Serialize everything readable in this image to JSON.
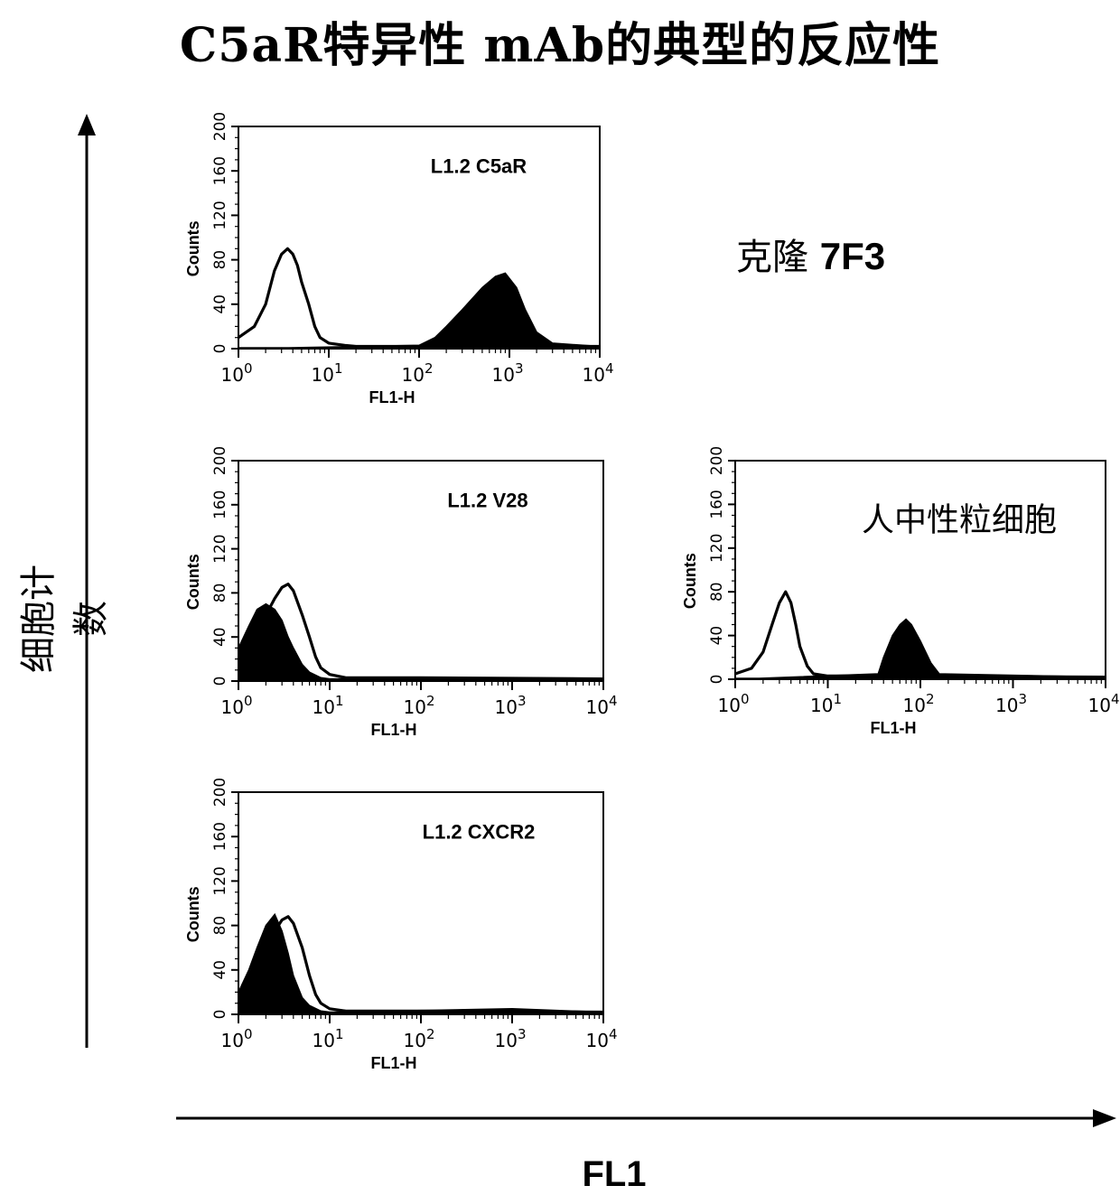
{
  "title": "C5aR特异性 mAb的典型的反应性",
  "clone_label": "克隆",
  "clone_id": "7F3",
  "overall_y_label": "细胞计数",
  "overall_x_label": "FL1",
  "colors": {
    "ink": "#000000",
    "background": "#ffffff"
  },
  "chart_data": [
    {
      "type": "area",
      "panel_label": "L1.2 C5aR",
      "xlabel": "FL1-H",
      "ylabel": "Counts",
      "x_scale": "log",
      "xlim": [
        1,
        10000
      ],
      "ylim": [
        0,
        200
      ],
      "x_ticks": [
        "10^0",
        "10^1",
        "10^2",
        "10^3",
        "10^4"
      ],
      "y_ticks": [
        0,
        40,
        80,
        120,
        160,
        200
      ],
      "series": [
        {
          "style": "open-outline",
          "x": [
            1,
            1.5,
            2,
            2.5,
            3,
            3.5,
            4,
            4.5,
            5,
            6,
            7,
            8,
            10,
            15,
            20,
            50,
            100,
            10000
          ],
          "y": [
            10,
            20,
            40,
            70,
            85,
            90,
            85,
            75,
            60,
            40,
            20,
            10,
            5,
            3,
            2,
            2,
            2,
            2
          ]
        },
        {
          "style": "filled",
          "x": [
            1,
            100,
            150,
            200,
            300,
            500,
            700,
            900,
            1200,
            1500,
            2000,
            3000,
            10000
          ],
          "y": [
            0,
            3,
            10,
            20,
            35,
            55,
            65,
            68,
            55,
            35,
            15,
            5,
            2
          ]
        }
      ]
    },
    {
      "type": "area",
      "panel_label": "L1.2 V28",
      "xlabel": "FL1-H",
      "ylabel": "Counts",
      "x_scale": "log",
      "xlim": [
        1,
        10000
      ],
      "ylim": [
        0,
        200
      ],
      "x_ticks": [
        "10^0",
        "10^1",
        "10^2",
        "10^3",
        "10^4"
      ],
      "y_ticks": [
        0,
        40,
        80,
        120,
        160,
        200
      ],
      "series": [
        {
          "style": "open-outline",
          "x": [
            1,
            1.5,
            2,
            2.5,
            3,
            3.5,
            4,
            5,
            6,
            7,
            8,
            10,
            15,
            20,
            100,
            10000
          ],
          "y": [
            20,
            40,
            60,
            75,
            85,
            88,
            82,
            60,
            40,
            22,
            12,
            6,
            3,
            3,
            3,
            2
          ]
        },
        {
          "style": "filled",
          "x": [
            1,
            1.3,
            1.6,
            2,
            2.5,
            3,
            3.5,
            4,
            5,
            6,
            8,
            10,
            1000,
            10000
          ],
          "y": [
            30,
            50,
            65,
            70,
            65,
            55,
            40,
            30,
            15,
            8,
            3,
            2,
            3,
            2
          ]
        }
      ]
    },
    {
      "type": "area",
      "panel_label": "人中性粒细胞",
      "xlabel": "FL1-H",
      "ylabel": "Counts",
      "x_scale": "log",
      "xlim": [
        1,
        10000
      ],
      "ylim": [
        0,
        200
      ],
      "x_ticks": [
        "10^0",
        "10^1",
        "10^2",
        "10^3",
        "10^4"
      ],
      "y_ticks": [
        0,
        40,
        80,
        120,
        160,
        200
      ],
      "series": [
        {
          "style": "open-outline",
          "x": [
            1,
            1.5,
            2,
            2.5,
            3,
            3.5,
            4,
            4.5,
            5,
            6,
            7,
            10,
            20,
            40,
            10000
          ],
          "y": [
            5,
            10,
            25,
            50,
            70,
            80,
            70,
            50,
            30,
            12,
            5,
            3,
            3,
            3,
            2
          ]
        },
        {
          "style": "filled",
          "x": [
            1,
            35,
            40,
            50,
            60,
            70,
            80,
            100,
            130,
            160,
            10000
          ],
          "y": [
            0,
            5,
            20,
            40,
            50,
            55,
            50,
            35,
            15,
            5,
            2
          ]
        }
      ]
    },
    {
      "type": "area",
      "panel_label": "L1.2 CXCR2",
      "xlabel": "FL1-H",
      "ylabel": "Counts",
      "x_scale": "log",
      "xlim": [
        1,
        10000
      ],
      "ylim": [
        0,
        200
      ],
      "x_ticks": [
        "10^0",
        "10^1",
        "10^2",
        "10^3",
        "10^4"
      ],
      "y_ticks": [
        0,
        40,
        80,
        120,
        160,
        200
      ],
      "series": [
        {
          "style": "open-outline",
          "x": [
            1,
            1.5,
            2,
            2.5,
            3,
            3.5,
            4,
            5,
            6,
            7,
            8,
            10,
            15,
            20,
            100,
            10000
          ],
          "y": [
            10,
            30,
            55,
            75,
            85,
            88,
            82,
            60,
            35,
            18,
            10,
            5,
            3,
            3,
            3,
            2
          ]
        },
        {
          "style": "filled",
          "x": [
            1,
            1.3,
            1.6,
            2,
            2.5,
            3,
            3.5,
            4,
            5,
            6,
            8,
            10,
            1000,
            10000
          ],
          "y": [
            20,
            40,
            60,
            80,
            90,
            75,
            55,
            35,
            15,
            8,
            3,
            2,
            5,
            2
          ]
        }
      ]
    }
  ]
}
